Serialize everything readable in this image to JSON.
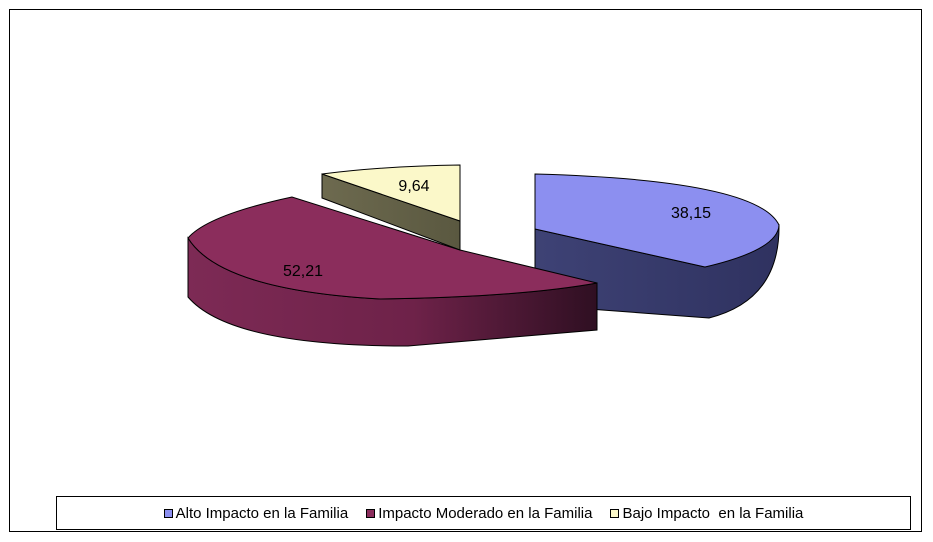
{
  "chart_data": {
    "type": "pie",
    "categories": [
      "Alto Impacto en la Familia",
      "Impacto Moderado en la Familia",
      "Bajo Impacto  en la Familia"
    ],
    "values": [
      38.15,
      52.21,
      9.64
    ],
    "data_labels": [
      "38,15",
      "52,21",
      "9,64"
    ],
    "colors": [
      "#8c8ff0",
      "#8b2d5c",
      "#fbf8c9"
    ],
    "legend_position": "bottom",
    "exploded": true,
    "three_d": true
  }
}
